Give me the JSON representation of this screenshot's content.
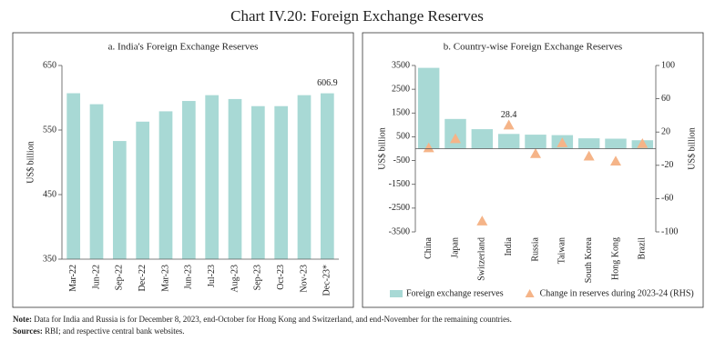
{
  "title": "Chart IV.20: Foreign Exchange Reserves",
  "chart_data": [
    {
      "type": "bar",
      "title": "a. India's Foreign Exchange Reserves",
      "ylabel": "US$ billion",
      "categories": [
        "Mar-22",
        "Jun-22",
        "Sep-22",
        "Dec-22",
        "Mar-23",
        "Jun-23",
        "Jul-23",
        "Aug-23",
        "Sep-23",
        "Oct-23",
        "Nov-23",
        "Dec-23*"
      ],
      "values": [
        607,
        590,
        533,
        563,
        579,
        595,
        604,
        598,
        587,
        587,
        604,
        606.9
      ],
      "value_labels": [
        null,
        null,
        null,
        null,
        null,
        null,
        null,
        null,
        null,
        null,
        null,
        "606.9"
      ],
      "color": "#a8d9d5",
      "ylim": [
        350,
        650
      ],
      "yticks": [
        350,
        450,
        550,
        650
      ]
    },
    {
      "type": "combo",
      "title": "b. Country-wise Foreign Exchange Reserves",
      "ylabel": "US$ billion",
      "y2label": "US$ billion",
      "categories": [
        "China",
        "Japan",
        "Switzerland",
        "India",
        "Russia",
        "Taiwan",
        "South Korea",
        "Hong Kong",
        "Brazil"
      ],
      "series": [
        {
          "name": "Foreign exchange reserves",
          "type": "bar",
          "color": "#a8d9d5",
          "values": [
            3400,
            1250,
            820,
            620,
            590,
            570,
            435,
            420,
            355
          ]
        },
        {
          "name": "Change in reserves during 2023-24 (RHS)",
          "type": "scatter",
          "marker": "triangle",
          "axis": "y2",
          "color": "#f5b488",
          "values": [
            1,
            12,
            -87,
            28.4,
            -6,
            7,
            -9,
            -15,
            6
          ],
          "value_labels": [
            null,
            null,
            null,
            "28.4",
            null,
            null,
            null,
            null,
            null
          ]
        }
      ],
      "ylim": [
        -3500,
        3500
      ],
      "yticks": [
        -3500,
        -2500,
        -1500,
        -500,
        500,
        1500,
        2500,
        3500
      ],
      "y2lim": [
        -100,
        100
      ],
      "y2ticks": [
        -100,
        -60,
        -20,
        20,
        60,
        100
      ],
      "legend": "bottom"
    }
  ],
  "note": {
    "label": "Note:",
    "text": "Data for India and Russia is for December 8, 2023, end-October for Hong Kong and Switzerland, and end-November for the remaining countries."
  },
  "sources": {
    "label": "Sources:",
    "text": "RBI; and respective central bank websites."
  }
}
